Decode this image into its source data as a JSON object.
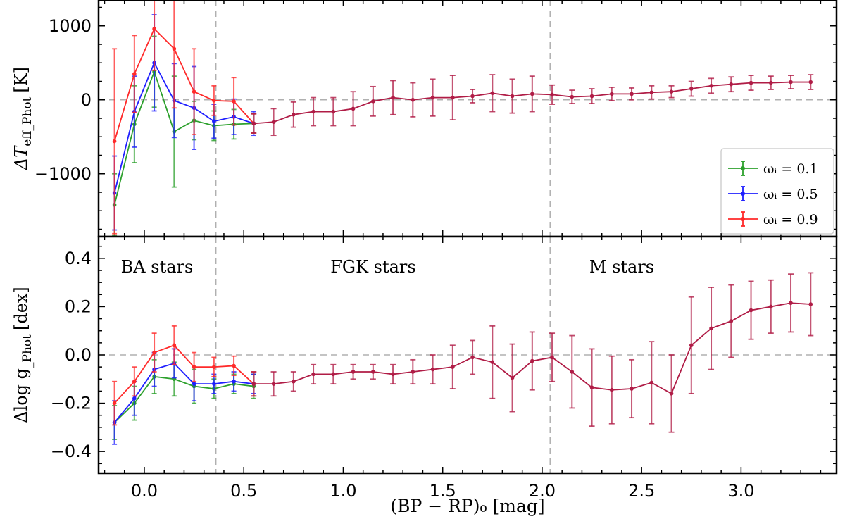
{
  "chart_data": [
    {
      "type": "line",
      "panel": "top",
      "ylabel_main": "ΔT",
      "ylabel_sub": "eff_Phot",
      "ylabel_unit": "[K]",
      "ylim": [
        -1850,
        1350
      ],
      "yticks": [
        1000,
        0,
        -1000
      ],
      "ytick_labels": [
        "1000",
        "0",
        "−1000"
      ],
      "legend_placement": "right",
      "series": [
        {
          "name": "ω_i = 0.1",
          "legend_label": "ωᵢ = 0.1",
          "color": "#2ca02c",
          "x": [
            -0.15,
            -0.05,
            0.05,
            0.15,
            0.25,
            0.35,
            0.45,
            0.55
          ],
          "y": [
            -1420,
            -330,
            380,
            -430,
            -280,
            -350,
            -330,
            -320
          ],
          "err": [
            420,
            520,
            480,
            750,
            260,
            200,
            200,
            130
          ]
        },
        {
          "name": "ω_i = 0.5",
          "legend_label": "ωᵢ = 0.5",
          "color": "#1f1fff",
          "x": [
            -0.15,
            -0.05,
            0.05,
            0.15,
            0.25,
            0.35,
            0.45,
            0.55
          ],
          "y": [
            -1260,
            -160,
            500,
            -10,
            -110,
            -290,
            -230,
            -320
          ],
          "err": [
            500,
            480,
            650,
            500,
            560,
            230,
            240,
            160
          ]
        },
        {
          "name": "ω_i = 0.9",
          "legend_label": "ωᵢ = 0.9",
          "color": "#ff2a2a",
          "x": [
            -0.15,
            -0.05,
            0.05,
            0.15,
            0.25,
            0.35,
            0.45,
            0.55
          ],
          "y": [
            -560,
            350,
            960,
            690,
            110,
            -10,
            -20,
            -320
          ],
          "err": [
            1250,
            520,
            560,
            800,
            580,
            200,
            320,
            130
          ]
        },
        {
          "name": "combined",
          "color": "#b01c46",
          "x": [
            0.55,
            0.65,
            0.75,
            0.85,
            0.95,
            1.05,
            1.15,
            1.25,
            1.35,
            1.45,
            1.55,
            1.65,
            1.75,
            1.85,
            1.95,
            2.05,
            2.15,
            2.25,
            2.35,
            2.45,
            2.55,
            2.65,
            2.75,
            2.85,
            2.95,
            3.05,
            3.15,
            3.25,
            3.35
          ],
          "y": [
            -320,
            -300,
            -200,
            -160,
            -160,
            -120,
            -20,
            30,
            0,
            30,
            30,
            50,
            90,
            50,
            80,
            70,
            40,
            50,
            80,
            80,
            100,
            110,
            150,
            190,
            210,
            230,
            230,
            240,
            240
          ],
          "err": [
            130,
            180,
            170,
            190,
            190,
            230,
            200,
            230,
            230,
            250,
            300,
            90,
            250,
            230,
            240,
            130,
            90,
            100,
            90,
            80,
            90,
            80,
            100,
            100,
            100,
            100,
            90,
            90,
            100
          ]
        }
      ]
    },
    {
      "type": "line",
      "panel": "bottom",
      "xlabel": "(BP − RP)₀ [mag]",
      "ylabel_main": "Δlog g",
      "ylabel_sub": "_Phot",
      "ylabel_unit": "[dex]",
      "ylim": [
        -0.49,
        0.49
      ],
      "xlim": [
        -0.23,
        3.48
      ],
      "yticks": [
        0.4,
        0.2,
        0.0,
        -0.2,
        -0.4
      ],
      "ytick_labels": [
        "0.4",
        "0.2",
        "0.0",
        "−0.2",
        "−0.4"
      ],
      "xticks": [
        0.0,
        0.5,
        1.0,
        1.5,
        2.0,
        2.5,
        3.0
      ],
      "xtick_labels": [
        "0.0",
        "0.5",
        "1.0",
        "1.5",
        "2.0",
        "2.5",
        "3.0"
      ],
      "region_dividers_x": [
        0.36,
        2.04
      ],
      "region_labels": [
        "BA stars",
        "FGK stars",
        "M stars"
      ],
      "series": [
        {
          "name": "ω_i = 0.1",
          "color": "#2ca02c",
          "x": [
            -0.15,
            -0.05,
            0.05,
            0.15,
            0.25,
            0.35,
            0.45,
            0.55
          ],
          "y": [
            -0.28,
            -0.2,
            -0.09,
            -0.1,
            -0.13,
            -0.14,
            -0.12,
            -0.13
          ],
          "err": [
            0.07,
            0.07,
            0.07,
            0.07,
            0.07,
            0.04,
            0.04,
            0.05
          ]
        },
        {
          "name": "ω_i = 0.5",
          "color": "#1f1fff",
          "x": [
            -0.15,
            -0.05,
            0.05,
            0.15,
            0.25,
            0.35,
            0.45,
            0.55
          ],
          "y": [
            -0.28,
            -0.18,
            -0.06,
            -0.035,
            -0.12,
            -0.12,
            -0.11,
            -0.12
          ],
          "err": [
            0.09,
            0.07,
            0.07,
            0.06,
            0.07,
            0.04,
            0.04,
            0.04
          ]
        },
        {
          "name": "ω_i = 0.9",
          "color": "#ff2a2a",
          "x": [
            -0.15,
            -0.05,
            0.05,
            0.15,
            0.25,
            0.35,
            0.45,
            0.55
          ],
          "y": [
            -0.2,
            -0.11,
            0.01,
            0.04,
            -0.05,
            -0.05,
            -0.045,
            -0.12
          ],
          "err": [
            0.09,
            0.06,
            0.08,
            0.08,
            0.06,
            0.04,
            0.04,
            0.05
          ]
        },
        {
          "name": "combined",
          "color": "#b01c46",
          "x": [
            0.55,
            0.65,
            0.75,
            0.85,
            0.95,
            1.05,
            1.15,
            1.25,
            1.35,
            1.45,
            1.55,
            1.65,
            1.75,
            1.85,
            1.95,
            2.05,
            2.15,
            2.25,
            2.35,
            2.45,
            2.55,
            2.65,
            2.75,
            2.85,
            2.95,
            3.05,
            3.15,
            3.25,
            3.35
          ],
          "y": [
            -0.12,
            -0.12,
            -0.11,
            -0.08,
            -0.08,
            -0.07,
            -0.07,
            -0.08,
            -0.07,
            -0.06,
            -0.05,
            -0.01,
            -0.03,
            -0.095,
            -0.025,
            -0.01,
            -0.07,
            -0.135,
            -0.145,
            -0.14,
            -0.115,
            -0.16,
            0.04,
            0.11,
            0.14,
            0.185,
            0.2,
            0.215,
            0.21
          ],
          "err": [
            0.05,
            0.05,
            0.04,
            0.04,
            0.04,
            0.03,
            0.03,
            0.04,
            0.05,
            0.06,
            0.09,
            0.07,
            0.15,
            0.14,
            0.12,
            0.1,
            0.15,
            0.16,
            0.14,
            0.12,
            0.17,
            0.16,
            0.2,
            0.17,
            0.15,
            0.12,
            0.11,
            0.12,
            0.13
          ]
        }
      ]
    }
  ]
}
